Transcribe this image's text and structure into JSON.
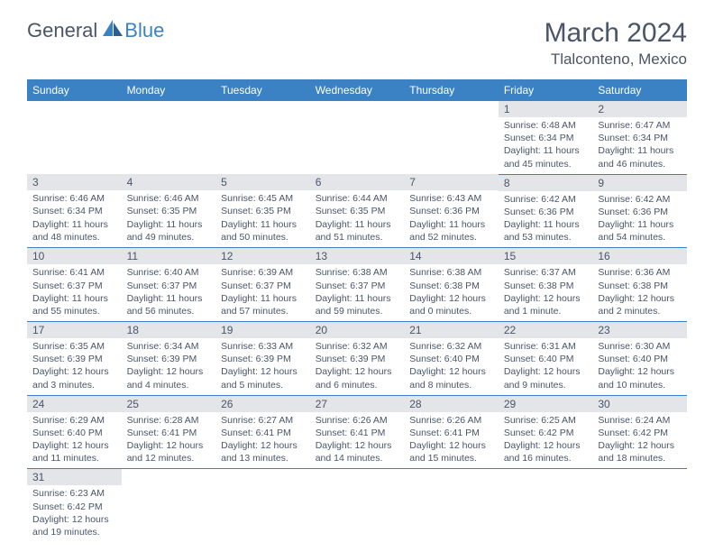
{
  "logo": {
    "general": "General",
    "blue": "Blue",
    "sail_color": "#3b82c4"
  },
  "header": {
    "month_title": "March 2024",
    "location": "Tlalconteno, Mexico"
  },
  "colors": {
    "header_bg": "#3b82c4",
    "header_text": "#ffffff",
    "daynum_bg": "#e3e5e8",
    "body_text": "#4a5568",
    "row_border": "#3b82c4"
  },
  "weekdays": [
    "Sunday",
    "Monday",
    "Tuesday",
    "Wednesday",
    "Thursday",
    "Friday",
    "Saturday"
  ],
  "weeks": [
    [
      null,
      null,
      null,
      null,
      null,
      {
        "n": "1",
        "sunrise": "6:48 AM",
        "sunset": "6:34 PM",
        "daylight": "11 hours and 45 minutes."
      },
      {
        "n": "2",
        "sunrise": "6:47 AM",
        "sunset": "6:34 PM",
        "daylight": "11 hours and 46 minutes."
      }
    ],
    [
      {
        "n": "3",
        "sunrise": "6:46 AM",
        "sunset": "6:34 PM",
        "daylight": "11 hours and 48 minutes."
      },
      {
        "n": "4",
        "sunrise": "6:46 AM",
        "sunset": "6:35 PM",
        "daylight": "11 hours and 49 minutes."
      },
      {
        "n": "5",
        "sunrise": "6:45 AM",
        "sunset": "6:35 PM",
        "daylight": "11 hours and 50 minutes."
      },
      {
        "n": "6",
        "sunrise": "6:44 AM",
        "sunset": "6:35 PM",
        "daylight": "11 hours and 51 minutes."
      },
      {
        "n": "7",
        "sunrise": "6:43 AM",
        "sunset": "6:36 PM",
        "daylight": "11 hours and 52 minutes."
      },
      {
        "n": "8",
        "sunrise": "6:42 AM",
        "sunset": "6:36 PM",
        "daylight": "11 hours and 53 minutes."
      },
      {
        "n": "9",
        "sunrise": "6:42 AM",
        "sunset": "6:36 PM",
        "daylight": "11 hours and 54 minutes."
      }
    ],
    [
      {
        "n": "10",
        "sunrise": "6:41 AM",
        "sunset": "6:37 PM",
        "daylight": "11 hours and 55 minutes."
      },
      {
        "n": "11",
        "sunrise": "6:40 AM",
        "sunset": "6:37 PM",
        "daylight": "11 hours and 56 minutes."
      },
      {
        "n": "12",
        "sunrise": "6:39 AM",
        "sunset": "6:37 PM",
        "daylight": "11 hours and 57 minutes."
      },
      {
        "n": "13",
        "sunrise": "6:38 AM",
        "sunset": "6:37 PM",
        "daylight": "11 hours and 59 minutes."
      },
      {
        "n": "14",
        "sunrise": "6:38 AM",
        "sunset": "6:38 PM",
        "daylight": "12 hours and 0 minutes."
      },
      {
        "n": "15",
        "sunrise": "6:37 AM",
        "sunset": "6:38 PM",
        "daylight": "12 hours and 1 minute."
      },
      {
        "n": "16",
        "sunrise": "6:36 AM",
        "sunset": "6:38 PM",
        "daylight": "12 hours and 2 minutes."
      }
    ],
    [
      {
        "n": "17",
        "sunrise": "6:35 AM",
        "sunset": "6:39 PM",
        "daylight": "12 hours and 3 minutes."
      },
      {
        "n": "18",
        "sunrise": "6:34 AM",
        "sunset": "6:39 PM",
        "daylight": "12 hours and 4 minutes."
      },
      {
        "n": "19",
        "sunrise": "6:33 AM",
        "sunset": "6:39 PM",
        "daylight": "12 hours and 5 minutes."
      },
      {
        "n": "20",
        "sunrise": "6:32 AM",
        "sunset": "6:39 PM",
        "daylight": "12 hours and 6 minutes."
      },
      {
        "n": "21",
        "sunrise": "6:32 AM",
        "sunset": "6:40 PM",
        "daylight": "12 hours and 8 minutes."
      },
      {
        "n": "22",
        "sunrise": "6:31 AM",
        "sunset": "6:40 PM",
        "daylight": "12 hours and 9 minutes."
      },
      {
        "n": "23",
        "sunrise": "6:30 AM",
        "sunset": "6:40 PM",
        "daylight": "12 hours and 10 minutes."
      }
    ],
    [
      {
        "n": "24",
        "sunrise": "6:29 AM",
        "sunset": "6:40 PM",
        "daylight": "12 hours and 11 minutes."
      },
      {
        "n": "25",
        "sunrise": "6:28 AM",
        "sunset": "6:41 PM",
        "daylight": "12 hours and 12 minutes."
      },
      {
        "n": "26",
        "sunrise": "6:27 AM",
        "sunset": "6:41 PM",
        "daylight": "12 hours and 13 minutes."
      },
      {
        "n": "27",
        "sunrise": "6:26 AM",
        "sunset": "6:41 PM",
        "daylight": "12 hours and 14 minutes."
      },
      {
        "n": "28",
        "sunrise": "6:26 AM",
        "sunset": "6:41 PM",
        "daylight": "12 hours and 15 minutes."
      },
      {
        "n": "29",
        "sunrise": "6:25 AM",
        "sunset": "6:42 PM",
        "daylight": "12 hours and 16 minutes."
      },
      {
        "n": "30",
        "sunrise": "6:24 AM",
        "sunset": "6:42 PM",
        "daylight": "12 hours and 18 minutes."
      }
    ],
    [
      {
        "n": "31",
        "sunrise": "6:23 AM",
        "sunset": "6:42 PM",
        "daylight": "12 hours and 19 minutes."
      },
      null,
      null,
      null,
      null,
      null,
      null
    ]
  ],
  "labels": {
    "sunrise": "Sunrise:",
    "sunset": "Sunset:",
    "daylight": "Daylight:"
  }
}
